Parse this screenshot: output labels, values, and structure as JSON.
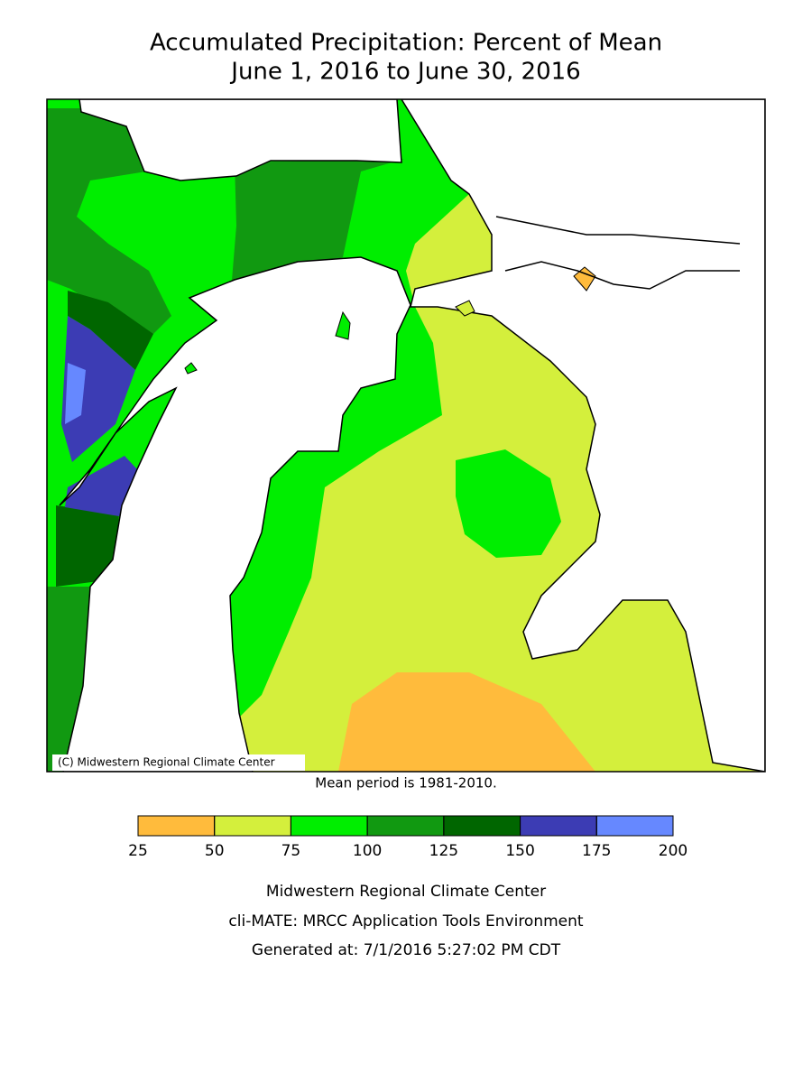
{
  "header": {
    "title_line1": "Accumulated Precipitation: Percent of Mean",
    "title_line2": "June 1, 2016 to June 30, 2016"
  },
  "map": {
    "copyright": "(C) Midwestern Regional Climate Center",
    "note": "Mean period is 1981-2010."
  },
  "legend": {
    "bins": [
      25,
      50,
      75,
      100,
      125,
      150,
      175,
      200
    ],
    "colors": [
      "#ffbb3c",
      "#d4ef3c",
      "#00ee00",
      "#119911",
      "#006600",
      "#3c3cb4",
      "#6688ff"
    ]
  },
  "footer": {
    "line1": "Midwestern Regional Climate Center",
    "line2": "cli-MATE: MRCC Application Tools Environment",
    "line3": "Generated at: 7/1/2016 5:27:02 PM CDT"
  }
}
